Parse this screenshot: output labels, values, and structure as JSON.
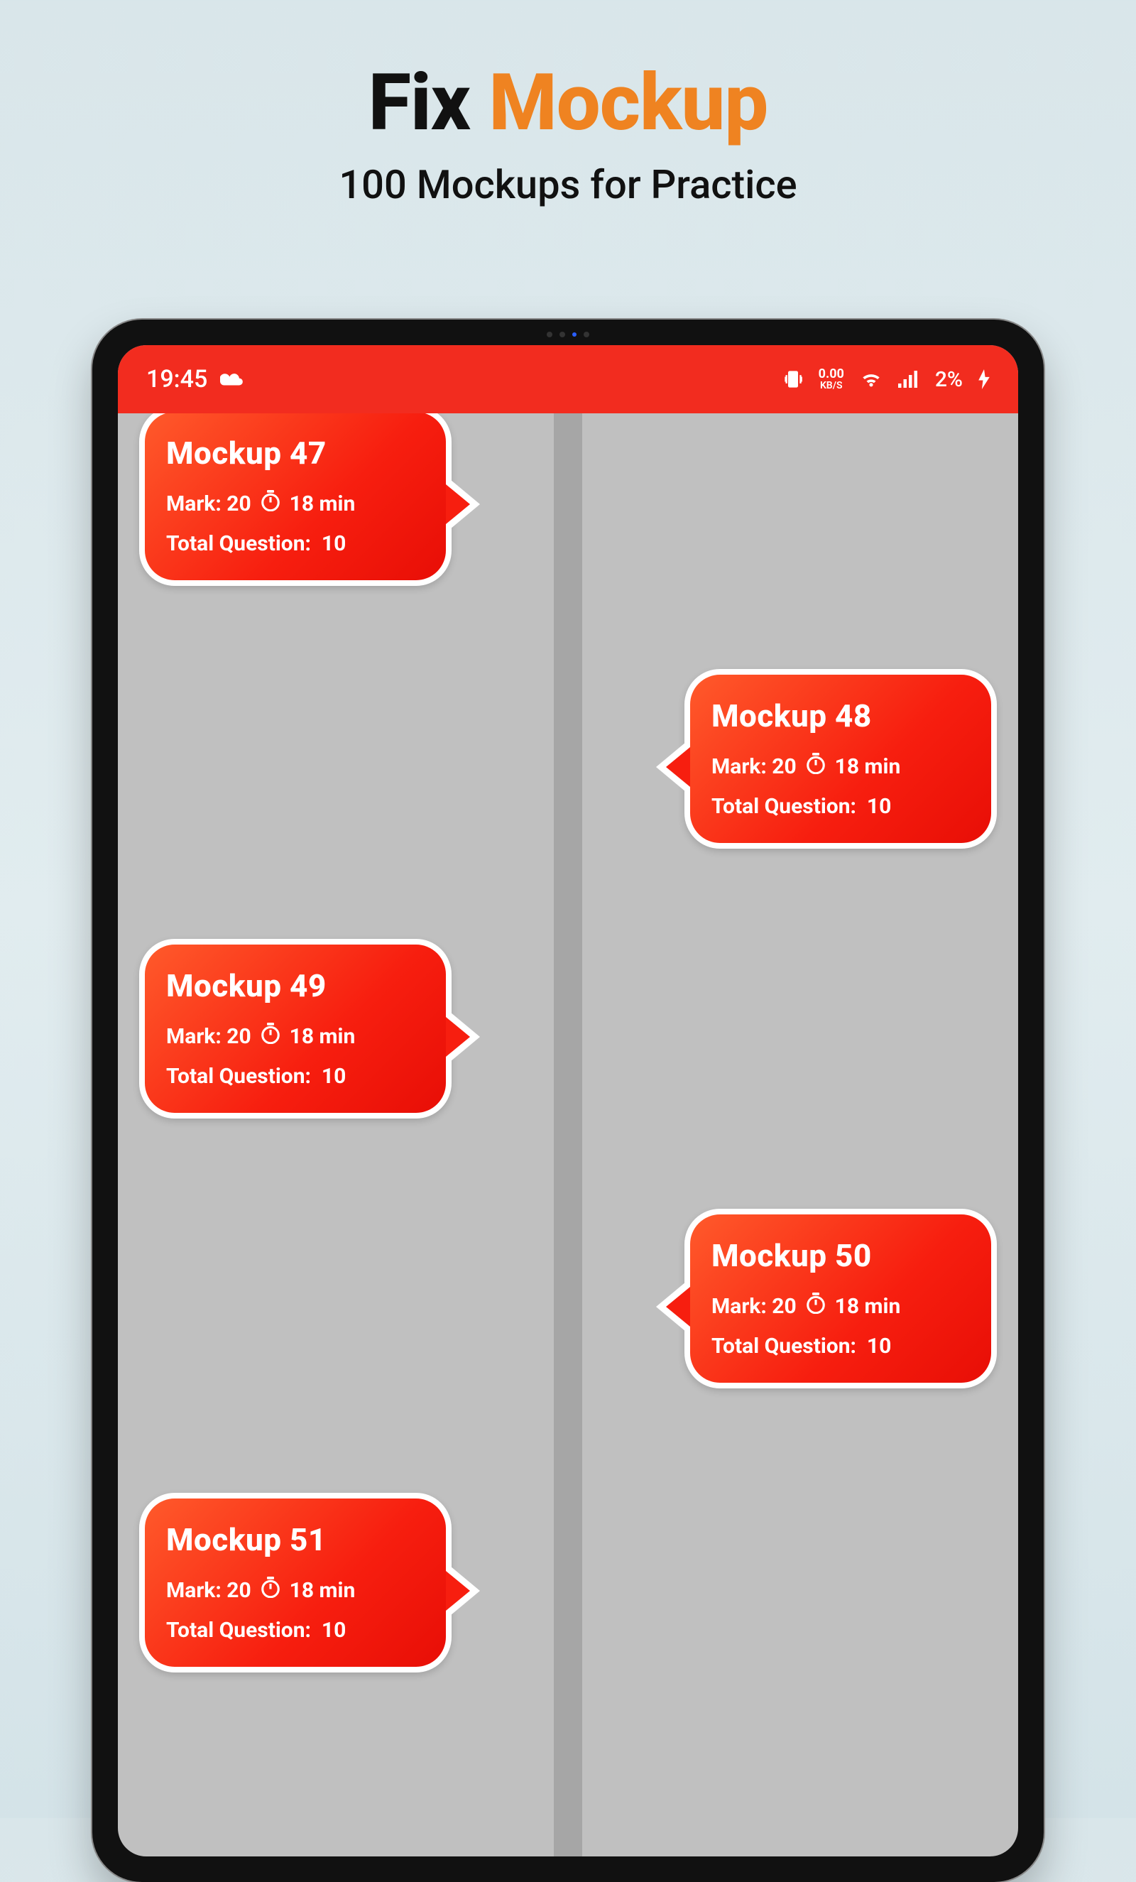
{
  "promo": {
    "title_word1": "Fix",
    "title_word2": "Mockup",
    "subtitle": "100 Mockups for Practice",
    "title_color1": "#111111",
    "title_color2": "#ef8321"
  },
  "statusbar": {
    "time": "19:45",
    "kbs_value": "0.00",
    "kbs_unit": "KB/S",
    "battery_text": "2%",
    "bg_color": "#f22c1f"
  },
  "labels": {
    "mark_prefix": "Mark:",
    "total_q_prefix": "Total Question:"
  },
  "colors": {
    "page_bg_top": "#d9e6ea",
    "page_bg_bottom": "#d4e3e8",
    "screen_bg": "#c0c0c0",
    "timeline_line": "#a6a6a6",
    "bubble_grad_start": "#ff5a2b",
    "bubble_grad_mid": "#f71e0f",
    "bubble_grad_end": "#e80e06",
    "bubble_border": "#ffffff",
    "text_on_bubble": "#ffffff"
  },
  "cards": [
    {
      "side": "left",
      "pos": "pos0",
      "title": "Mockup 47",
      "mark": "20",
      "time": "18 min",
      "total": "10"
    },
    {
      "side": "right",
      "pos": "pos1",
      "title": "Mockup 48",
      "mark": "20",
      "time": "18 min",
      "total": "10"
    },
    {
      "side": "left",
      "pos": "pos2",
      "title": "Mockup 49",
      "mark": "20",
      "time": "18 min",
      "total": "10"
    },
    {
      "side": "right",
      "pos": "pos3",
      "title": "Mockup 50",
      "mark": "20",
      "time": "18 min",
      "total": "10"
    },
    {
      "side": "left",
      "pos": "pos4",
      "title": "Mockup 51",
      "mark": "20",
      "time": "18 min",
      "total": "10"
    }
  ]
}
